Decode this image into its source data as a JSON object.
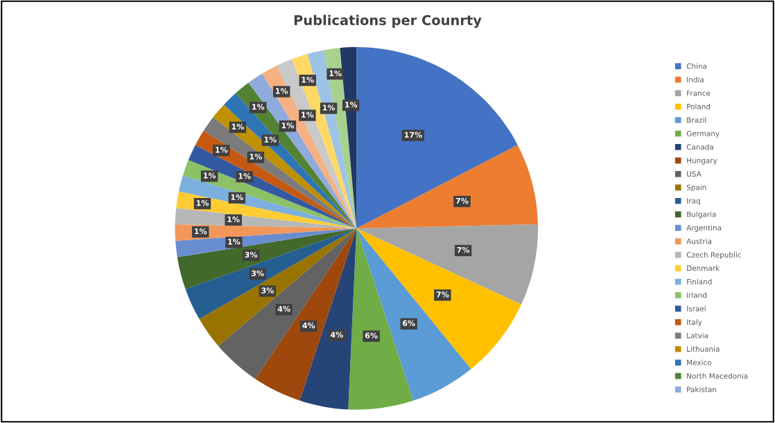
{
  "chart_data": {
    "type": "pie",
    "title": "Publications per Counrty",
    "categories": [
      "China",
      "India",
      "France",
      "Poland",
      "Brazil",
      "Germany",
      "Canada",
      "Hungary",
      "USA",
      "Spain",
      "Iraq",
      "Bulgaria",
      "Argentina",
      "Austria",
      "Czech Republic",
      "Denmark",
      "Finland",
      "Irland",
      "Israel",
      "Italy",
      "Latvia",
      "Lithuania",
      "Mexico",
      "North Macedonia",
      "Pakistan",
      null,
      null,
      null,
      null,
      null,
      null
    ],
    "values": [
      17.391,
      7.246,
      7.246,
      7.246,
      5.797,
      5.797,
      4.348,
      4.348,
      4.348,
      2.899,
      2.899,
      2.899,
      1.449,
      1.449,
      1.449,
      1.449,
      1.449,
      1.449,
      1.449,
      1.449,
      1.449,
      1.449,
      1.449,
      1.449,
      1.449,
      1.449,
      1.449,
      1.449,
      1.449,
      1.449,
      1.449
    ],
    "value_labels": [
      "17%",
      "7%",
      "7%",
      "7%",
      "6%",
      "6%",
      "4%",
      "4%",
      "4%",
      "3%",
      "3%",
      "3%",
      "1%",
      "1%",
      "1%",
      "1%",
      "1%",
      "1%",
      "1%",
      "1%",
      "1%",
      "1%",
      "1%",
      "1%",
      "1%",
      "1%",
      "1%",
      "1%",
      "1%",
      "1%",
      "1%"
    ],
    "colors": [
      "#4472c4",
      "#ed7d31",
      "#a5a5a5",
      "#ffc000",
      "#5b9bd5",
      "#70ad47",
      "#264478",
      "#9e480e",
      "#636363",
      "#997300",
      "#255e91",
      "#43682b",
      "#698ed0",
      "#f1975a",
      "#b7b7b7",
      "#ffcd33",
      "#7cafdd",
      "#8cc168",
      "#335aa1",
      "#c65911",
      "#7b7b7b",
      "#bf9000",
      "#2e75b6",
      "#548235",
      "#8faadc",
      "#f4b183",
      "#c9c9c9",
      "#ffd966",
      "#9dc3e6",
      "#a9d18e",
      "#203864"
    ],
    "legend": "right"
  }
}
